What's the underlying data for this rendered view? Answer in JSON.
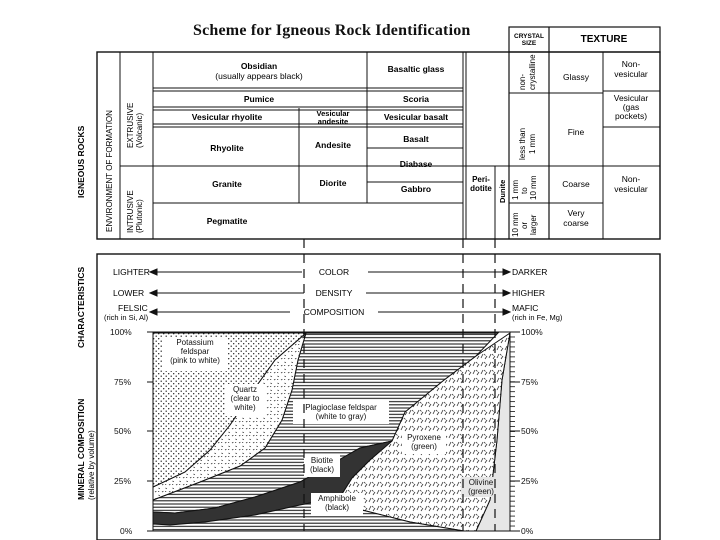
{
  "title": "Scheme for Igneous Rock Identification",
  "headers": {
    "crystal_size": [
      "CRYSTAL",
      "SIZE"
    ],
    "texture": "TEXTURE"
  },
  "side_labels": {
    "igneous_rocks": "IGNEOUS ROCKS",
    "environment": "ENVIRONMENT OF FORMATION",
    "extrusive": [
      "EXTRUSIVE",
      "(Volcanic)"
    ],
    "intrusive": [
      "INTRUSIVE",
      "(Plutonic)"
    ],
    "characteristics": "CHARACTERISTICS",
    "mineral_composition": [
      "MINERAL COMPOSITION",
      "(relative by volume)"
    ]
  },
  "rocks": {
    "obsidian": [
      "Obsidian",
      "(usually appears black)"
    ],
    "basaltic_glass": "Basaltic glass",
    "pumice": "Pumice",
    "scoria": "Scoria",
    "vesicular_rhyolite": "Vesicular rhyolite",
    "vesicular_andesite": [
      "Vesicular",
      "andesite"
    ],
    "vesicular_basalt": "Vesicular basalt",
    "rhyolite": "Rhyolite",
    "andesite": "Andesite",
    "basalt": "Basalt",
    "diabase": "Diabase",
    "granite": "Granite",
    "diorite": "Diorite",
    "gabbro": "Gabbro",
    "peridotite": [
      "Peri-",
      "dotite"
    ],
    "dunite": "Dunite",
    "pegmatite": "Pegmatite"
  },
  "crystal_sizes": {
    "non_crystalline": [
      "non-",
      "crystalline"
    ],
    "less_than_1mm": [
      "less than",
      "1 mm"
    ],
    "one_to_10mm": [
      "1 mm",
      "to",
      "10 mm"
    ],
    "ten_or_larger": [
      "10 mm",
      "or",
      "larger"
    ]
  },
  "textures": {
    "glassy": "Glassy",
    "non_vesicular_top": [
      "Non-",
      "vesicular"
    ],
    "vesicular": [
      "Vesicular",
      "(gas",
      "pockets)"
    ],
    "fine": "Fine",
    "coarse": "Coarse",
    "very_coarse": [
      "Very",
      "coarse"
    ],
    "non_vesicular_bottom": [
      "Non-",
      "vesicular"
    ]
  },
  "characteristics": {
    "color": {
      "left": "LIGHTER",
      "center": "COLOR",
      "right": "DARKER"
    },
    "density": {
      "left": "LOWER",
      "center": "DENSITY",
      "right": "HIGHER"
    },
    "composition": {
      "left": [
        "FELSIC",
        "(rich in Si, Al)"
      ],
      "center": "COMPOSITION",
      "right": [
        "MAFIC",
        "(rich in Fe, Mg)"
      ]
    }
  },
  "percent_ticks": [
    "100%",
    "75%",
    "50%",
    "25%",
    "0%"
  ],
  "minerals": {
    "potassium_feldspar": [
      "Potassium",
      "feldspar",
      "(pink to white)"
    ],
    "quartz": [
      "Quartz",
      "(clear to",
      "white)"
    ],
    "plagioclase": [
      "Plagioclase feldspar",
      "(white to gray)"
    ],
    "biotite": [
      "Biotite",
      "(black)"
    ],
    "amphibole": [
      "Amphibole",
      "(black)"
    ],
    "pyroxene": [
      "Pyroxene",
      "(green)"
    ],
    "olivine": [
      "Olivine",
      "(green)"
    ]
  }
}
